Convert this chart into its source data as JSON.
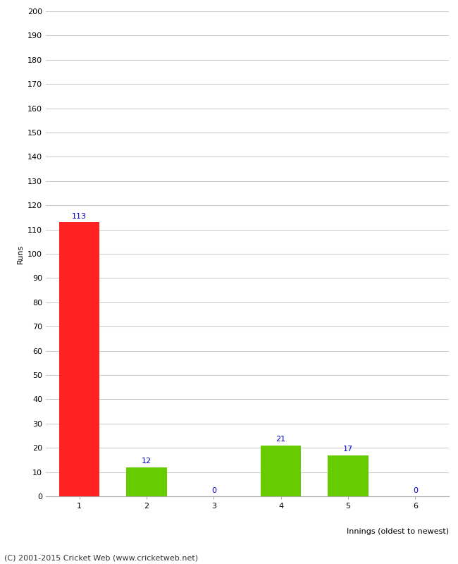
{
  "categories": [
    "1",
    "2",
    "3",
    "4",
    "5",
    "6"
  ],
  "values": [
    113,
    12,
    0,
    21,
    17,
    0
  ],
  "bar_colors": [
    "#ff2222",
    "#66cc00",
    "#66cc00",
    "#66cc00",
    "#66cc00",
    "#66cc00"
  ],
  "ylabel": "Runs",
  "xlabel": "Innings (oldest to newest)",
  "ylim": [
    0,
    200
  ],
  "yticks": [
    0,
    10,
    20,
    30,
    40,
    50,
    60,
    70,
    80,
    90,
    100,
    110,
    120,
    130,
    140,
    150,
    160,
    170,
    180,
    190,
    200
  ],
  "label_color": "#0000cc",
  "label_fontsize": 8,
  "axis_fontsize": 8,
  "tick_fontsize": 8,
  "footer": "(C) 2001-2015 Cricket Web (www.cricketweb.net)",
  "background_color": "#ffffff",
  "grid_color": "#cccccc"
}
